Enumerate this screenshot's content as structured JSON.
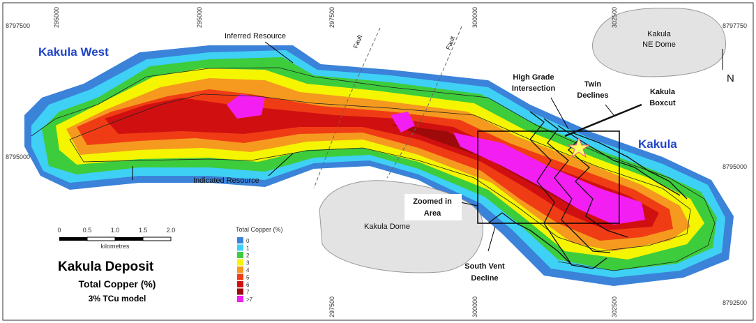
{
  "grid_labels": {
    "top": [
      "295000",
      "295000",
      "297500",
      "300000",
      "302500"
    ],
    "bottom": [
      "297500",
      "300000",
      "302500"
    ],
    "left": [
      "8797500",
      "8795000"
    ],
    "right": [
      "8797750",
      "8795000",
      "8792500"
    ]
  },
  "map_labels": {
    "kakula_west": "Kakula West",
    "inferred_resource": "Inferred Resource",
    "fault_1": "Fault",
    "fault_2": "Fault",
    "kakula_ne_dome": [
      "Kakula",
      "NE Dome"
    ],
    "north": "N",
    "high_grade_intersection": [
      "High Grade",
      "Intersection"
    ],
    "twin_declines": [
      "Twin",
      "Declines"
    ],
    "kakula_boxcut": [
      "Kakula",
      "Boxcut"
    ],
    "kakula": "Kakula",
    "indicated_resource": "Indicated Resource",
    "zoomed_in_area": [
      "Zoomed in",
      "Area"
    ],
    "kakula_dome": "Kakula Dome",
    "south_vent_decline": [
      "South Vent",
      "Decline"
    ]
  },
  "scale_bar": {
    "ticks": [
      "0",
      "0.5",
      "1.0",
      "1.5",
      "2.0"
    ],
    "unit": "kilometres"
  },
  "legend": {
    "title": "Total Copper (%)",
    "items": [
      {
        "label": "0",
        "color": "#3b82d9"
      },
      {
        "label": "1",
        "color": "#3fd0f5"
      },
      {
        "label": "2",
        "color": "#3ccc3c"
      },
      {
        "label": "3",
        "color": "#f5f500"
      },
      {
        "label": "4",
        "color": "#f59a1e"
      },
      {
        "label": "5",
        "color": "#f03c14"
      },
      {
        "label": "6",
        "color": "#d01010"
      },
      {
        "label": "7",
        "color": "#9e0a0a"
      },
      {
        "label": ">7",
        "color": "#f21ef2"
      }
    ]
  },
  "title_block": {
    "title": "Kakula Deposit",
    "subtitle": "Total Copper (%)",
    "model": "3% TCu model"
  }
}
